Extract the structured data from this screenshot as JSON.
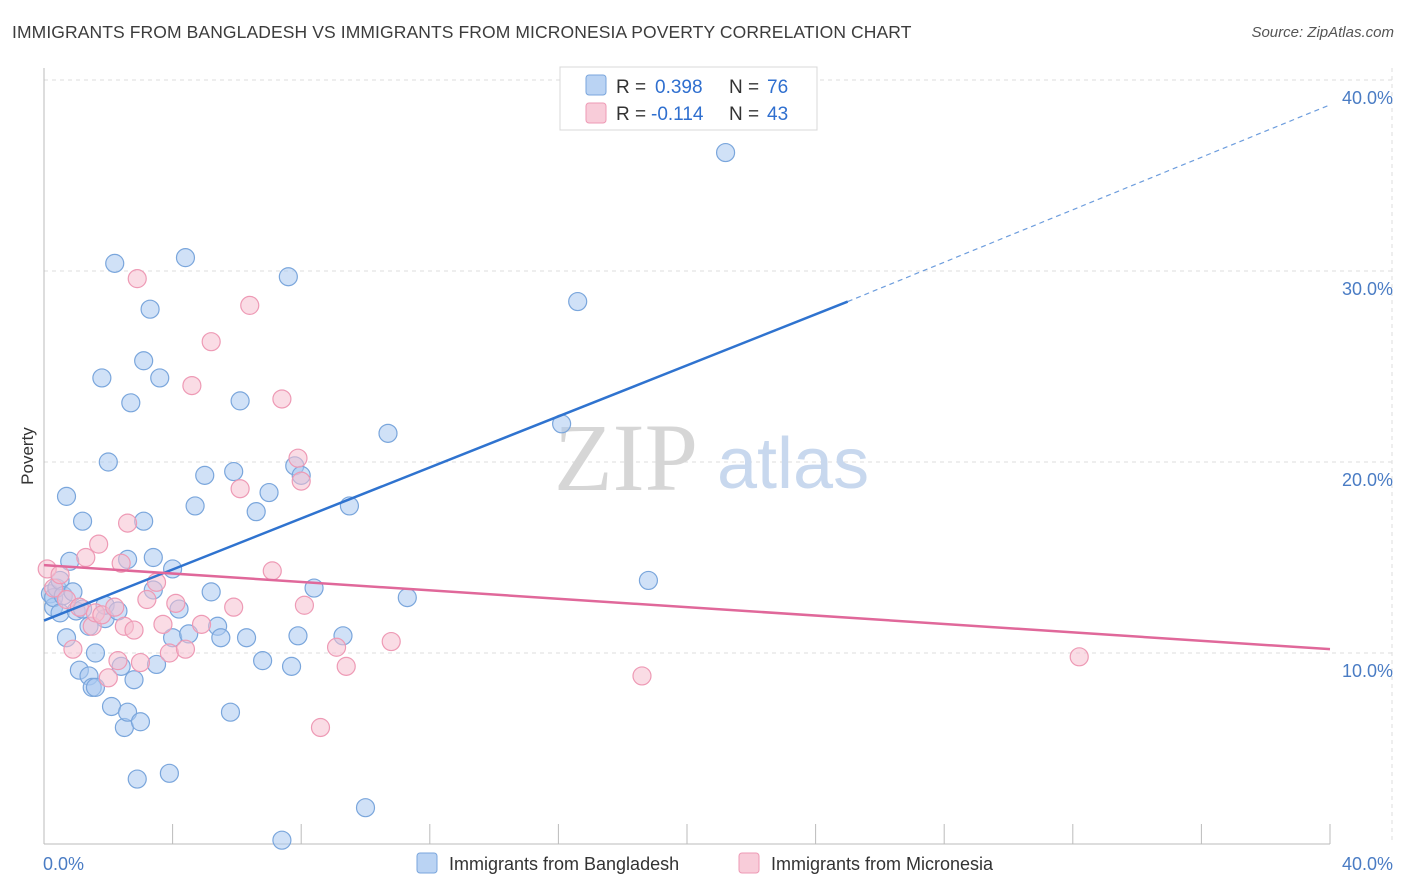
{
  "header": {
    "title": "IMMIGRANTS FROM BANGLADESH VS IMMIGRANTS FROM MICRONESIA POVERTY CORRELATION CHART",
    "source": "Source: ZipAtlas.com"
  },
  "watermark": {
    "zip": "ZIP",
    "atlas": "atlas"
  },
  "legend_box": {
    "rows": [
      {
        "r_label": "R = ",
        "r_value": "0.398",
        "n_label": "N = ",
        "n_value": "76"
      },
      {
        "r_label": "R = ",
        "r_value": "-0.114",
        "n_label": "N = ",
        "n_value": "43"
      }
    ]
  },
  "colors": {
    "bangladesh_fill": "#a9c8f0",
    "bangladesh_stroke": "#7aa6dc",
    "bangladesh_line": "#2f73cf",
    "micronesia_fill": "#f6bfd0",
    "micronesia_stroke": "#ee9ab5",
    "micronesia_line": "#e0689a",
    "grid": "#dddddd"
  },
  "chart_data": {
    "type": "scatter",
    "title": "IMMIGRANTS FROM BANGLADESH VS IMMIGRANTS FROM MICRONESIA POVERTY CORRELATION CHART",
    "xlabel": "",
    "ylabel": "Poverty",
    "xlim": [
      0,
      40
    ],
    "ylim": [
      0,
      40
    ],
    "x_tick_labels": [
      "0.0%",
      "40.0%"
    ],
    "y_ticks": [
      10,
      20,
      30,
      40
    ],
    "y_tick_labels": [
      "10.0%",
      "20.0%",
      "30.0%",
      "40.0%"
    ],
    "grid": true,
    "legend_position": "top-center",
    "series": [
      {
        "name": "Immigrants from Bangladesh",
        "R": 0.398,
        "N": 76,
        "trend": {
          "x": [
            0,
            25
          ],
          "y": [
            11.7,
            28.4
          ],
          "dashed_to": [
            40,
            38.7
          ]
        },
        "points": [
          [
            0.2,
            13.1
          ],
          [
            0.3,
            12.4
          ],
          [
            0.3,
            12.9
          ],
          [
            0.4,
            13.4
          ],
          [
            0.5,
            13.8
          ],
          [
            0.5,
            12.1
          ],
          [
            0.6,
            13.0
          ],
          [
            0.7,
            10.8
          ],
          [
            0.7,
            18.2
          ],
          [
            0.8,
            14.8
          ],
          [
            0.9,
            13.2
          ],
          [
            1.0,
            12.2
          ],
          [
            1.1,
            9.1
          ],
          [
            1.2,
            12.3
          ],
          [
            1.2,
            16.9
          ],
          [
            1.4,
            11.4
          ],
          [
            1.4,
            8.8
          ],
          [
            1.5,
            8.2
          ],
          [
            1.6,
            10.0
          ],
          [
            1.6,
            8.2
          ],
          [
            1.8,
            24.4
          ],
          [
            1.9,
            11.8
          ],
          [
            1.9,
            12.5
          ],
          [
            2.0,
            20.0
          ],
          [
            2.1,
            7.2
          ],
          [
            2.2,
            30.4
          ],
          [
            2.3,
            12.2
          ],
          [
            2.4,
            9.3
          ],
          [
            2.5,
            6.1
          ],
          [
            2.6,
            14.9
          ],
          [
            2.6,
            6.9
          ],
          [
            2.7,
            23.1
          ],
          [
            2.8,
            8.6
          ],
          [
            2.9,
            3.4
          ],
          [
            3.0,
            6.4
          ],
          [
            3.1,
            25.3
          ],
          [
            3.1,
            16.9
          ],
          [
            3.3,
            28.0
          ],
          [
            3.4,
            13.3
          ],
          [
            3.4,
            15.0
          ],
          [
            3.5,
            9.4
          ],
          [
            3.6,
            24.4
          ],
          [
            3.9,
            3.7
          ],
          [
            4.0,
            10.8
          ],
          [
            4.0,
            14.4
          ],
          [
            4.2,
            12.3
          ],
          [
            4.4,
            30.7
          ],
          [
            4.5,
            11.0
          ],
          [
            4.7,
            17.7
          ],
          [
            5.0,
            19.3
          ],
          [
            5.2,
            13.2
          ],
          [
            5.4,
            11.4
          ],
          [
            5.5,
            10.8
          ],
          [
            5.8,
            6.9
          ],
          [
            5.9,
            19.5
          ],
          [
            6.1,
            23.2
          ],
          [
            6.3,
            10.8
          ],
          [
            6.6,
            17.4
          ],
          [
            6.8,
            9.6
          ],
          [
            7.0,
            18.4
          ],
          [
            7.4,
            0.2
          ],
          [
            7.6,
            29.7
          ],
          [
            7.7,
            9.3
          ],
          [
            7.8,
            19.8
          ],
          [
            7.9,
            10.9
          ],
          [
            8.0,
            19.3
          ],
          [
            8.4,
            13.4
          ],
          [
            9.3,
            10.9
          ],
          [
            9.5,
            17.7
          ],
          [
            10.0,
            1.9
          ],
          [
            10.7,
            21.5
          ],
          [
            11.3,
            12.9
          ],
          [
            16.1,
            22.0
          ],
          [
            16.6,
            28.4
          ],
          [
            18.8,
            13.8
          ],
          [
            21.2,
            36.2
          ]
        ]
      },
      {
        "name": "Immigrants from Micronesia",
        "R": -0.114,
        "N": 43,
        "trend": {
          "x": [
            0,
            40
          ],
          "y": [
            14.6,
            10.2
          ]
        },
        "points": [
          [
            0.1,
            14.4
          ],
          [
            0.3,
            13.4
          ],
          [
            0.5,
            14.1
          ],
          [
            0.7,
            12.8
          ],
          [
            0.9,
            10.2
          ],
          [
            1.1,
            12.4
          ],
          [
            1.3,
            15.0
          ],
          [
            1.5,
            11.4
          ],
          [
            1.6,
            12.1
          ],
          [
            1.7,
            15.7
          ],
          [
            1.8,
            12.0
          ],
          [
            2.0,
            8.7
          ],
          [
            2.2,
            12.4
          ],
          [
            2.3,
            9.6
          ],
          [
            2.4,
            14.7
          ],
          [
            2.5,
            11.4
          ],
          [
            2.6,
            16.8
          ],
          [
            2.8,
            11.2
          ],
          [
            2.9,
            29.6
          ],
          [
            3.0,
            9.5
          ],
          [
            3.2,
            12.8
          ],
          [
            3.5,
            13.7
          ],
          [
            3.7,
            11.5
          ],
          [
            3.9,
            10.0
          ],
          [
            4.1,
            12.6
          ],
          [
            4.4,
            10.2
          ],
          [
            4.6,
            24.0
          ],
          [
            4.9,
            11.5
          ],
          [
            5.2,
            26.3
          ],
          [
            5.9,
            12.4
          ],
          [
            6.1,
            18.6
          ],
          [
            6.4,
            28.2
          ],
          [
            7.1,
            14.3
          ],
          [
            7.4,
            23.3
          ],
          [
            7.9,
            20.2
          ],
          [
            8.0,
            19.0
          ],
          [
            8.1,
            12.5
          ],
          [
            8.6,
            6.1
          ],
          [
            9.1,
            10.3
          ],
          [
            9.4,
            9.3
          ],
          [
            10.8,
            10.6
          ],
          [
            18.6,
            8.8
          ],
          [
            32.2,
            9.8
          ]
        ]
      }
    ]
  },
  "bottom_legend": {
    "items": [
      {
        "label": "Immigrants from Bangladesh"
      },
      {
        "label": "Immigrants from Micronesia"
      }
    ]
  }
}
